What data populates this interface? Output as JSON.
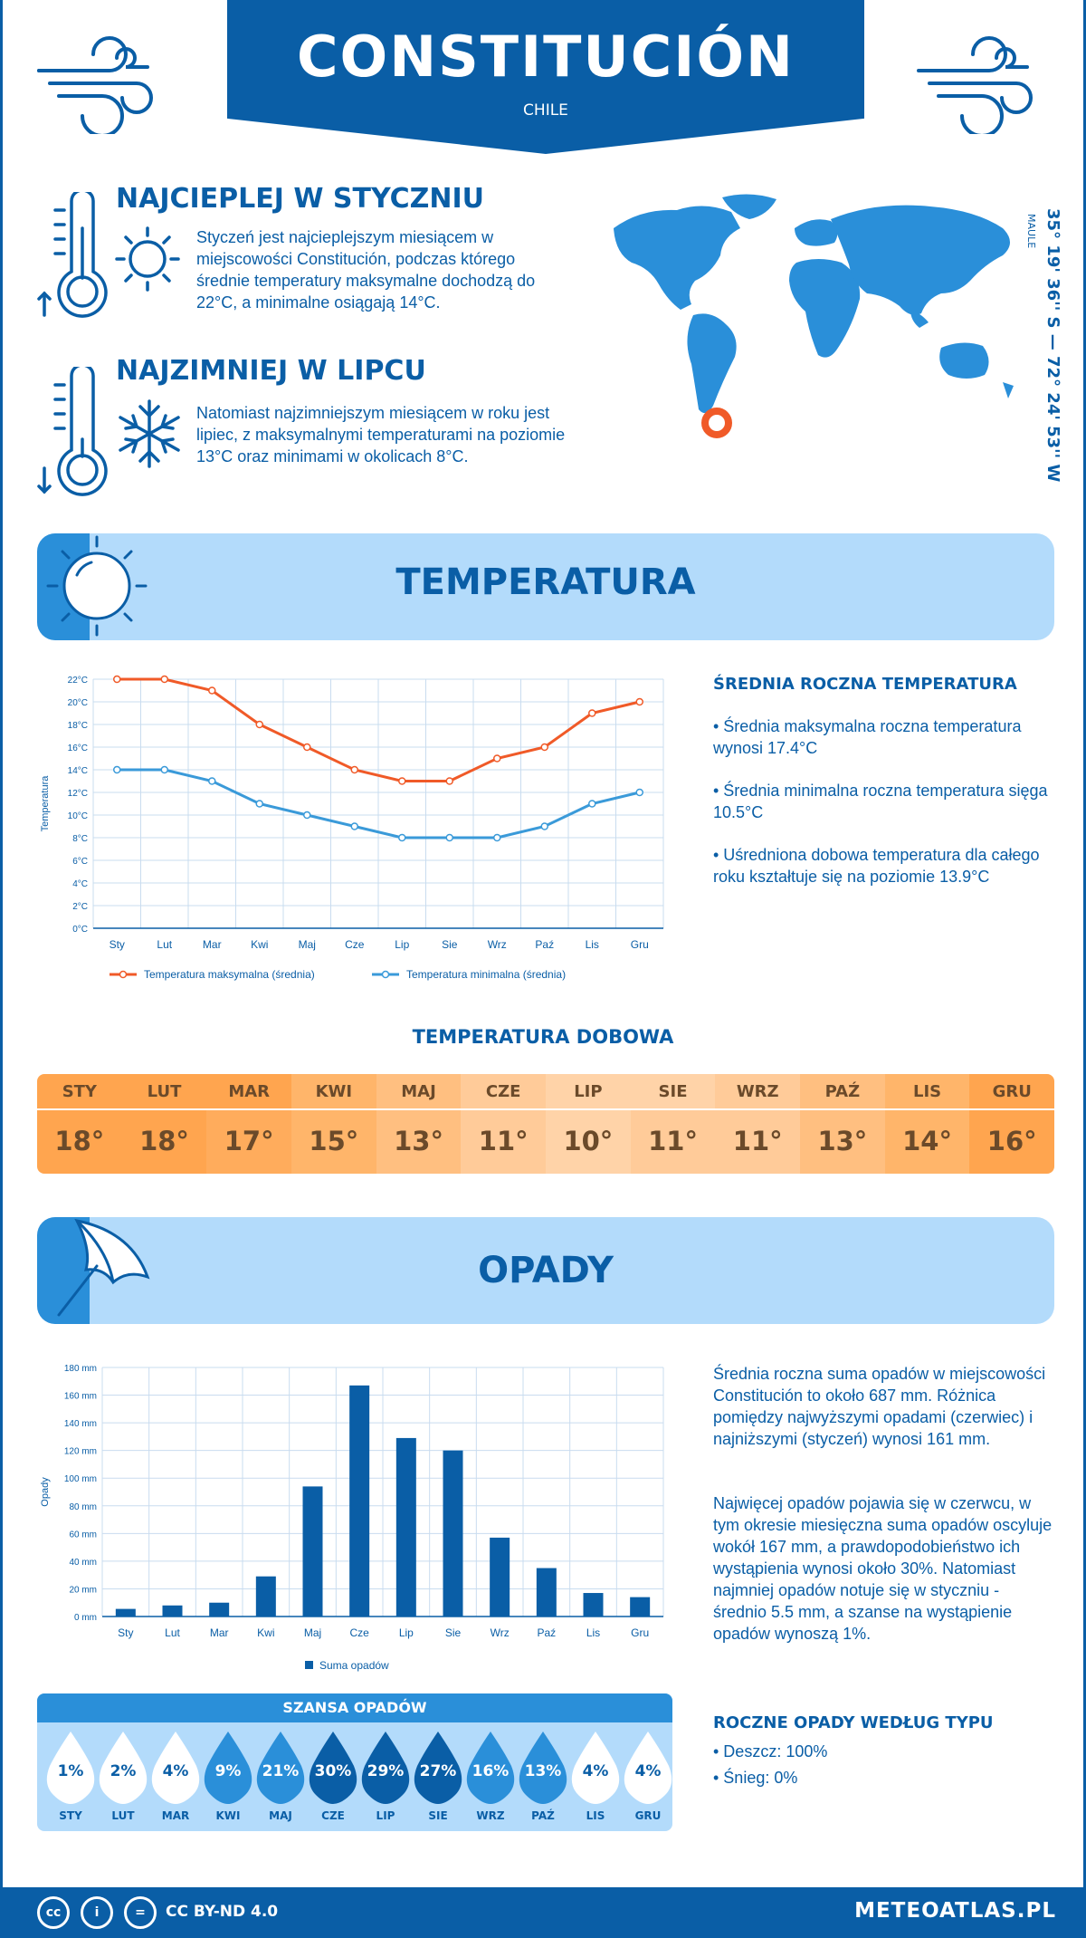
{
  "header": {
    "city": "CONSTITUCIÓN",
    "country": "CHILE"
  },
  "warmest": {
    "title": "NAJCIEPLEJ W STYCZNIU",
    "text": "Styczeń jest najcieplejszym miesiącem w miejscowości Constitución, podczas którego średnie temperatury maksymalne dochodzą do 22°C, a minimalne osiągają 14°C."
  },
  "coldest": {
    "title": "NAJZIMNIEJ W LIPCU",
    "text": "Natomiast najzimniejszym miesiącem w roku jest lipiec, z maksymalnymi temperaturami na poziomie 13°C oraz minimami w okolicach 8°C."
  },
  "location": {
    "coords": "35° 19' 36'' S — 72° 24' 53'' W",
    "region": "MAULE"
  },
  "temperature": {
    "title": "TEMPERATURA",
    "side_title": "ŚREDNIA ROCZNA TEMPERATURA",
    "bullets": [
      "• Średnia maksymalna roczna temperatura wynosi 17.4°C",
      "• Średnia minimalna roczna temperatura sięga 10.5°C",
      "• Uśredniona dobowa temperatura dla całego roku kształtuje się na poziomie 13.9°C"
    ]
  },
  "daily": {
    "title": "TEMPERATURA DOBOWA",
    "months": [
      "STY",
      "LUT",
      "MAR",
      "KWI",
      "MAJ",
      "CZE",
      "LIP",
      "SIE",
      "WRZ",
      "PAŹ",
      "LIS",
      "GRU"
    ],
    "values": [
      "18°",
      "18°",
      "17°",
      "15°",
      "13°",
      "11°",
      "10°",
      "11°",
      "11°",
      "13°",
      "14°",
      "16°"
    ],
    "head_colors": [
      "#ffa54f",
      "#ffa54f",
      "#ffa54f",
      "#ffb56a",
      "#ffbf80",
      "#ffcb99",
      "#ffd3a8",
      "#ffd3a8",
      "#ffcb99",
      "#ffbf80",
      "#ffb56a",
      "#ffa54f"
    ],
    "cell_colors": [
      "#ffa54f",
      "#ffa54f",
      "#ffac5c",
      "#ffb56a",
      "#ffbf80",
      "#ffcb99",
      "#ffd3a8",
      "#ffcb99",
      "#ffcb99",
      "#ffbf80",
      "#ffb56a",
      "#ffa54f"
    ]
  },
  "precip": {
    "title": "OPADY",
    "para1": "Średnia roczna suma opadów w miejscowości Constitución to około 687 mm. Różnica pomiędzy najwyższymi opadami (czerwiec) i najniższymi (styczeń) wynosi 161 mm.",
    "para2": "Najwięcej opadów pojawia się w czerwcu, w tym okresie miesięczna suma opadów oscyluje wokół 167 mm, a prawdopodobieństwo ich wystąpienia wynosi około 30%. Natomiast najmniej opadów notuje się w styczniu - średnio 5.5 mm, a szanse na wystąpienie opadów wynoszą 1%.",
    "type_title": "ROCZNE OPADY WEDŁUG TYPU",
    "types": [
      "• Deszcz: 100%",
      "• Śnieg: 0%"
    ]
  },
  "chance": {
    "title": "SZANSA OPADÓW",
    "months": [
      "STY",
      "LUT",
      "MAR",
      "KWI",
      "MAJ",
      "CZE",
      "LIP",
      "SIE",
      "WRZ",
      "PAŹ",
      "LIS",
      "GRU"
    ],
    "values": [
      "1%",
      "2%",
      "4%",
      "9%",
      "21%",
      "30%",
      "29%",
      "27%",
      "16%",
      "13%",
      "4%",
      "4%"
    ],
    "drop_colors": [
      "#ffffff",
      "#ffffff",
      "#ffffff",
      "#2a8fd9",
      "#2a8fd9",
      "#0a5ea6",
      "#0a5ea6",
      "#0a5ea6",
      "#2a8fd9",
      "#2a8fd9",
      "#ffffff",
      "#ffffff"
    ],
    "text_colors": [
      "#0a5ea6",
      "#0a5ea6",
      "#0a5ea6",
      "#ffffff",
      "#ffffff",
      "#ffffff",
      "#ffffff",
      "#ffffff",
      "#ffffff",
      "#ffffff",
      "#0a5ea6",
      "#0a5ea6"
    ]
  },
  "footer": {
    "license": "CC BY-ND 4.0",
    "site": "METEOATLAS.PL"
  },
  "chart_data": [
    {
      "type": "line",
      "categories": [
        "Sty",
        "Lut",
        "Mar",
        "Kwi",
        "Maj",
        "Cze",
        "Lip",
        "Sie",
        "Wrz",
        "Paź",
        "Lis",
        "Gru"
      ],
      "series": [
        {
          "name": "Temperatura maksymalna (średnia)",
          "values": [
            22,
            22,
            21,
            18,
            16,
            14,
            13,
            13,
            15,
            16,
            19,
            20
          ],
          "color": "#f05a28"
        },
        {
          "name": "Temperatura minimalna (średnia)",
          "values": [
            14,
            14,
            13,
            11,
            10,
            9,
            8,
            8,
            8,
            9,
            11,
            12
          ],
          "color": "#3a9ad9"
        }
      ],
      "ylabel": "Temperatura",
      "yticks": [
        "0°C",
        "2°C",
        "4°C",
        "6°C",
        "8°C",
        "10°C",
        "12°C",
        "14°C",
        "16°C",
        "18°C",
        "20°C",
        "22°C"
      ],
      "ylim": [
        0,
        22
      ],
      "grid": true,
      "legend": "bottom"
    },
    {
      "type": "bar",
      "categories": [
        "Sty",
        "Lut",
        "Mar",
        "Kwi",
        "Maj",
        "Cze",
        "Lip",
        "Sie",
        "Wrz",
        "Paź",
        "Lis",
        "Gru"
      ],
      "series": [
        {
          "name": "Suma opadów",
          "values": [
            5.5,
            8,
            10,
            29,
            94,
            167,
            129,
            120,
            57,
            35,
            17,
            14
          ],
          "color": "#0a5ea6"
        }
      ],
      "ylabel": "Opady",
      "yticks": [
        "0 mm",
        "20 mm",
        "40 mm",
        "60 mm",
        "80 mm",
        "100 mm",
        "120 mm",
        "140 mm",
        "160 mm",
        "180 mm"
      ],
      "ylim": [
        0,
        180
      ],
      "grid": true,
      "legend": "bottom"
    }
  ]
}
